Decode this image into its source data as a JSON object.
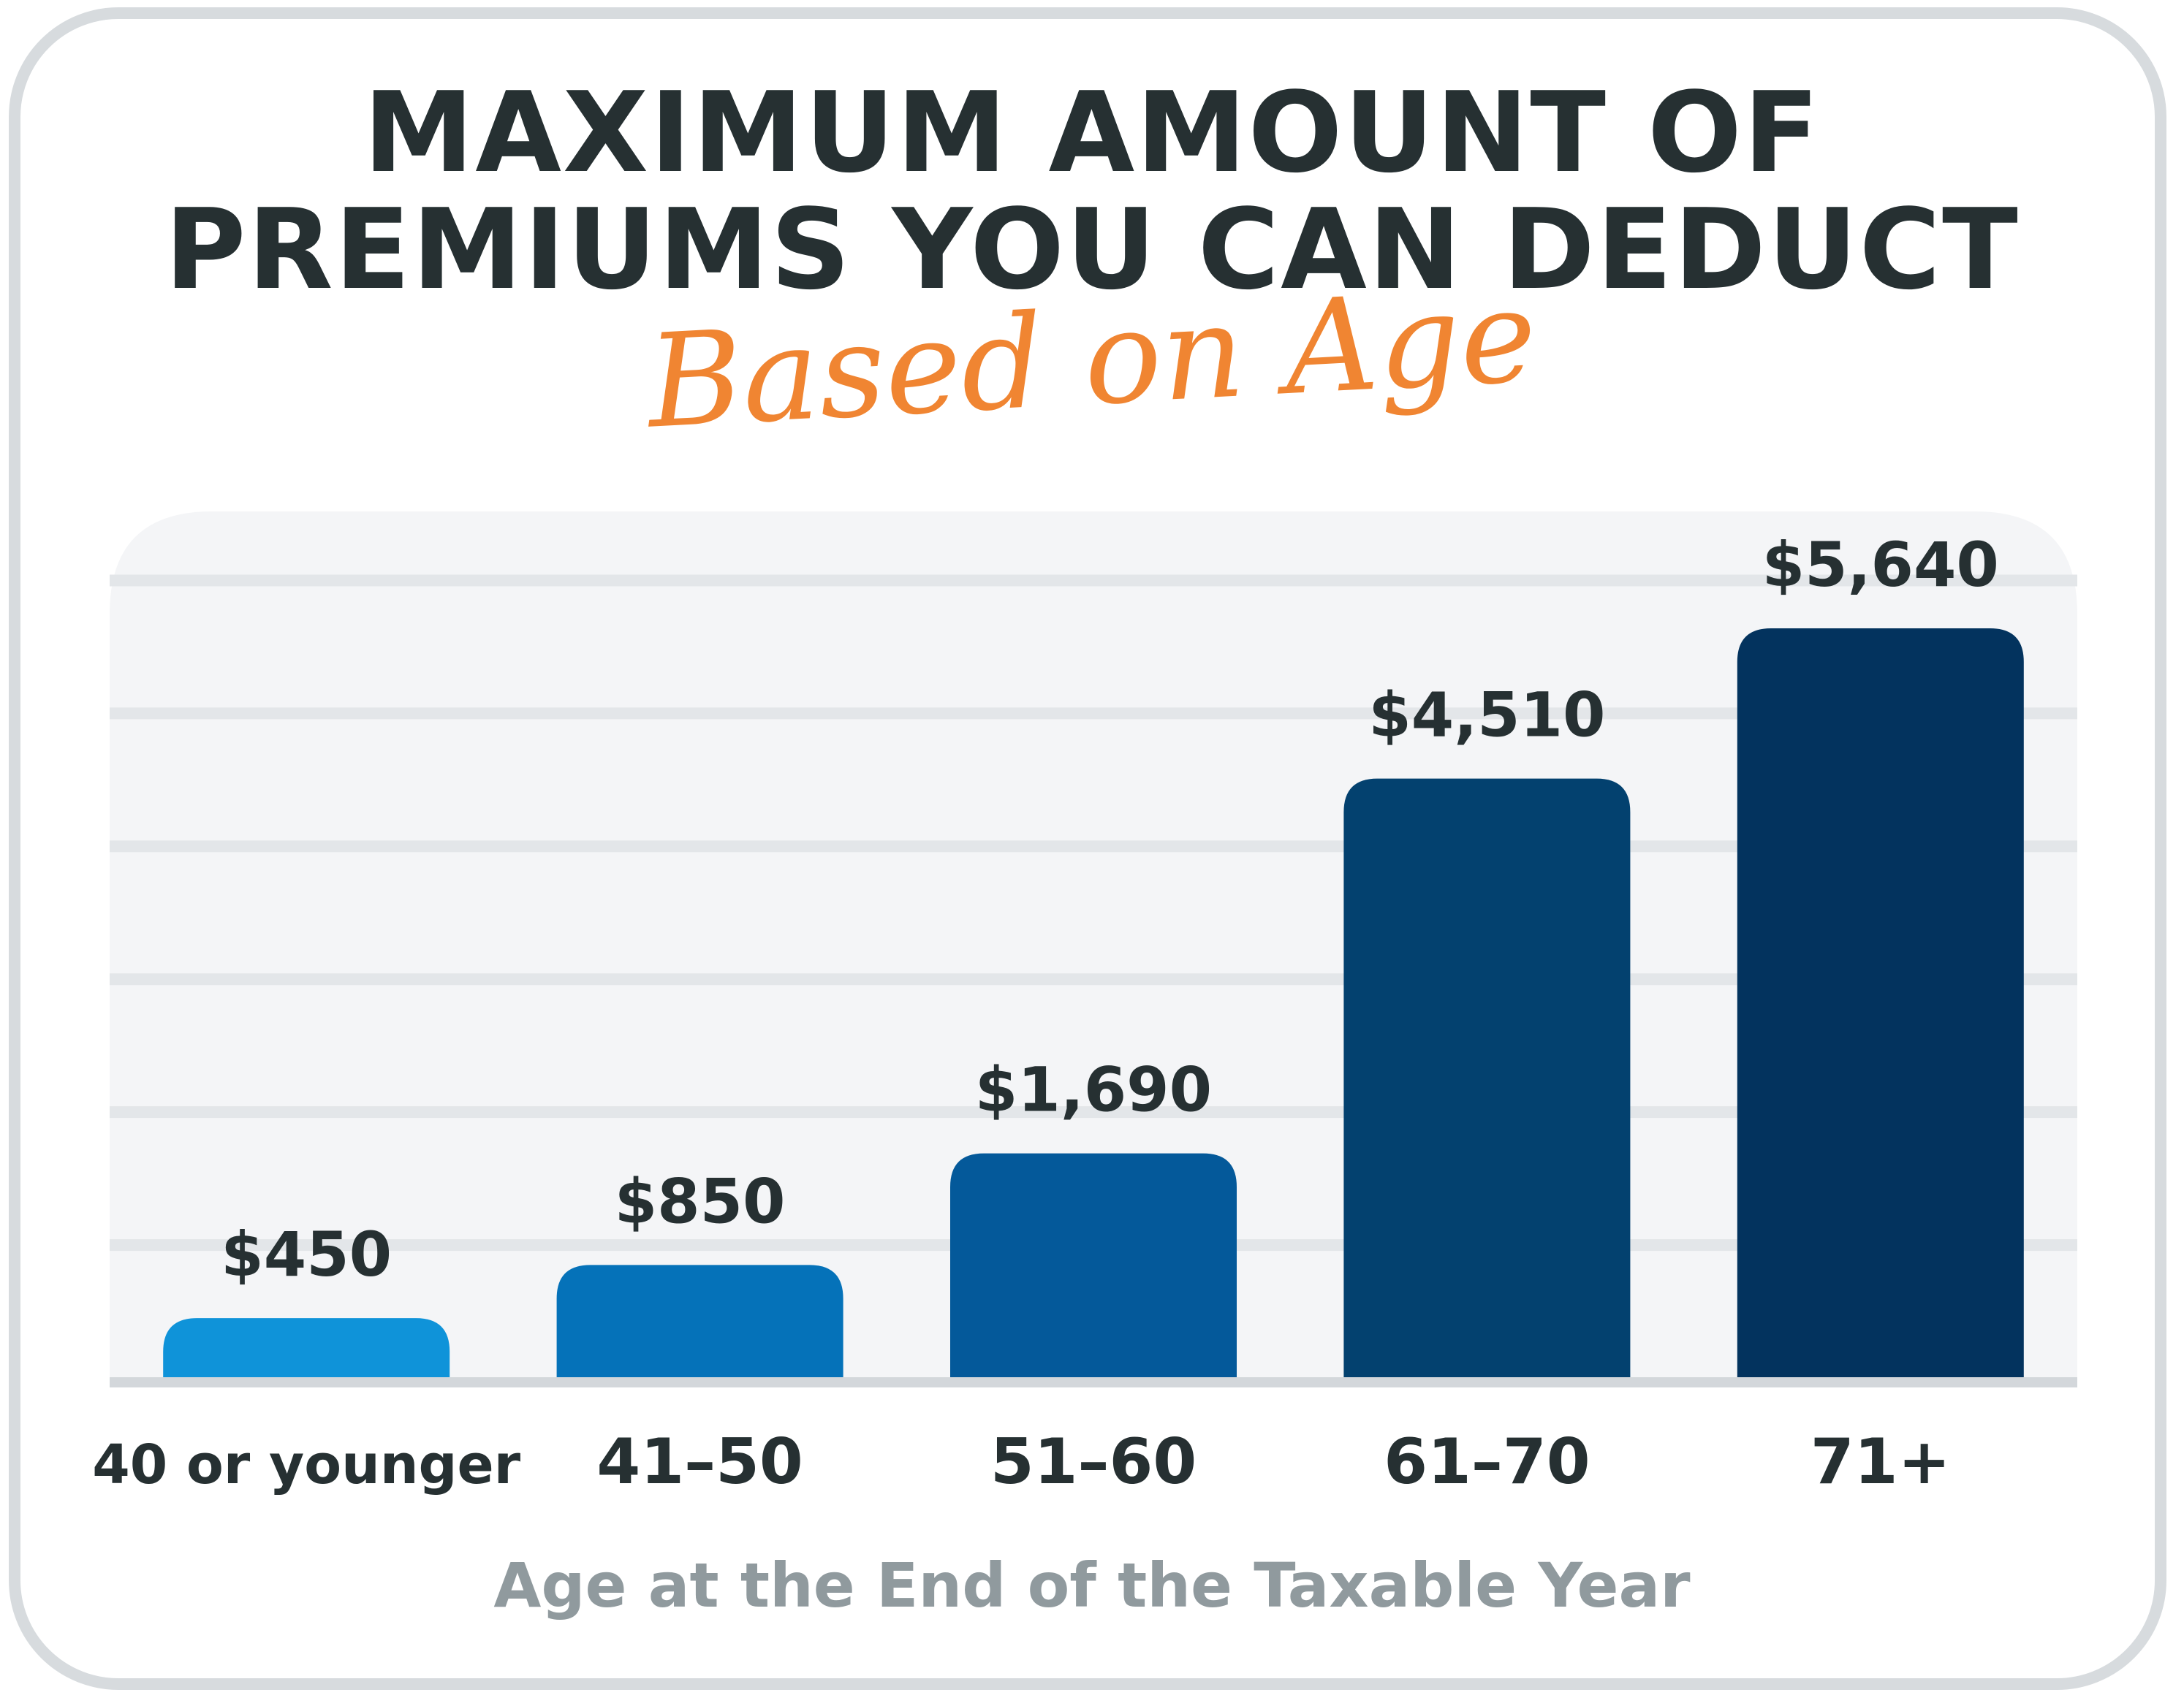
{
  "chart_data": {
    "type": "bar",
    "title_line1": "MAXIMUM AMOUNT OF",
    "title_line2": "PREMIUMS YOU CAN DEDUCT",
    "subtitle": "Based on Age",
    "xlabel": "Age at the End of the Taxable Year",
    "ylabel": "",
    "categories": [
      "40 or younger",
      "41–50",
      "51–60",
      "61–70",
      "71+"
    ],
    "values": [
      450,
      850,
      1690,
      4510,
      5640
    ],
    "value_labels": [
      "$450",
      "$850",
      "$1,690",
      "$4,510",
      "$5,640"
    ],
    "ylim": [
      0,
      6000
    ],
    "grid": true,
    "legend": "none",
    "bar_colors": [
      "#0f93d9",
      "#0572b9",
      "#04599a",
      "#03416f",
      "#03335e"
    ],
    "colors": {
      "title": "#263032",
      "subtitle": "#f08532",
      "axis_title": "#909a9e",
      "label": "#263032",
      "plot_bg": "#f4f5f7",
      "grid": "#e3e6e9",
      "border": "#d7dbde"
    }
  }
}
